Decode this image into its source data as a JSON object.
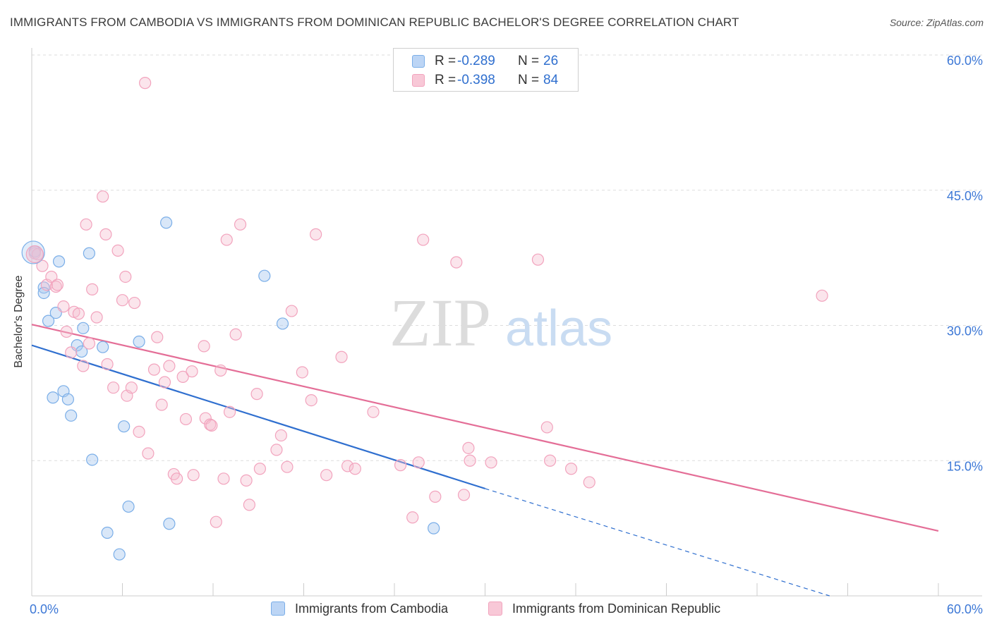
{
  "title": "IMMIGRANTS FROM CAMBODIA VS IMMIGRANTS FROM DOMINICAN REPUBLIC BACHELOR'S DEGREE CORRELATION CHART",
  "source": "Source: ZipAtlas.com",
  "watermark": {
    "zip": "ZIP",
    "atlas": "atlas"
  },
  "legend": {
    "rows": [
      {
        "r_label": "R =",
        "r_value": "-0.289",
        "n_label": "N =",
        "n_value": "26"
      },
      {
        "r_label": "R =",
        "r_value": "-0.398",
        "n_label": "N =",
        "n_value": "84"
      }
    ]
  },
  "bottom_legend": [
    "Immigrants from Cambodia",
    "Immigrants from Dominican Republic"
  ],
  "chart_data": {
    "type": "scatter",
    "xlabel": "",
    "ylabel": "Bachelor's Degree",
    "xlim": [
      0,
      60
    ],
    "ylim": [
      0,
      60
    ],
    "x_tick_labels": [
      "0.0%",
      "60.0%"
    ],
    "y_tick_labels": [
      "15.0%",
      "30.0%",
      "45.0%",
      "60.0%"
    ],
    "y_ticks": [
      15,
      30,
      45,
      60
    ],
    "grid": true,
    "colors": {
      "cambodia": "#7aaee8",
      "dominican": "#f2a3bd",
      "cambodia_line": "#2f6fcf",
      "dominican_line": "#e46e97",
      "tick": "#3d78d6"
    },
    "series": [
      {
        "name": "Immigrants from Cambodia",
        "points": [
          [
            0.2,
            38.2
          ],
          [
            0.8,
            34.2
          ],
          [
            0.8,
            33.6
          ],
          [
            1.1,
            30.5
          ],
          [
            1.6,
            31.4
          ],
          [
            1.8,
            37.1
          ],
          [
            2.1,
            22.7
          ],
          [
            1.4,
            22.0
          ],
          [
            2.4,
            21.8
          ],
          [
            2.6,
            20.0
          ],
          [
            3.4,
            29.7
          ],
          [
            3.0,
            27.8
          ],
          [
            3.3,
            27.1
          ],
          [
            3.8,
            38.0
          ],
          [
            4.7,
            27.6
          ],
          [
            4.0,
            15.1
          ],
          [
            5.0,
            7.0
          ],
          [
            5.8,
            4.6
          ],
          [
            6.1,
            18.8
          ],
          [
            6.4,
            9.9
          ],
          [
            7.1,
            28.2
          ],
          [
            8.9,
            41.4
          ],
          [
            9.1,
            8.0
          ],
          [
            15.4,
            35.5
          ],
          [
            16.6,
            30.2
          ],
          [
            26.6,
            7.5
          ]
        ],
        "trend": {
          "x": [
            0,
            30
          ],
          "y": [
            27.8,
            11.9
          ]
        },
        "trend_dashed": {
          "x": [
            30,
            52.8
          ],
          "y": [
            11.9,
            0
          ]
        }
      },
      {
        "name": "Immigrants from Dominican Republic",
        "points": [
          [
            0.2,
            38.0
          ],
          [
            0.7,
            36.6
          ],
          [
            1.0,
            34.5
          ],
          [
            1.3,
            35.4
          ],
          [
            1.6,
            34.3
          ],
          [
            1.7,
            34.5
          ],
          [
            2.1,
            32.1
          ],
          [
            2.3,
            29.3
          ],
          [
            2.6,
            27.0
          ],
          [
            2.8,
            31.5
          ],
          [
            3.1,
            31.3
          ],
          [
            3.4,
            25.5
          ],
          [
            3.6,
            41.2
          ],
          [
            3.8,
            28.0
          ],
          [
            4.0,
            34.0
          ],
          [
            4.3,
            30.9
          ],
          [
            4.7,
            44.3
          ],
          [
            4.9,
            40.1
          ],
          [
            5.0,
            25.7
          ],
          [
            5.4,
            23.1
          ],
          [
            5.7,
            38.3
          ],
          [
            6.0,
            32.8
          ],
          [
            6.2,
            35.4
          ],
          [
            6.3,
            22.2
          ],
          [
            6.6,
            23.1
          ],
          [
            6.8,
            32.5
          ],
          [
            7.1,
            18.2
          ],
          [
            7.5,
            56.9
          ],
          [
            7.7,
            15.8
          ],
          [
            8.1,
            25.1
          ],
          [
            8.3,
            28.7
          ],
          [
            8.6,
            21.2
          ],
          [
            8.8,
            23.7
          ],
          [
            9.1,
            25.5
          ],
          [
            9.4,
            13.5
          ],
          [
            9.6,
            13.0
          ],
          [
            10.0,
            24.3
          ],
          [
            10.2,
            19.6
          ],
          [
            10.6,
            24.9
          ],
          [
            10.7,
            13.4
          ],
          [
            11.4,
            27.7
          ],
          [
            11.5,
            19.7
          ],
          [
            11.8,
            19.0
          ],
          [
            11.9,
            18.9
          ],
          [
            12.2,
            8.2
          ],
          [
            12.5,
            25.0
          ],
          [
            12.7,
            13.0
          ],
          [
            12.9,
            39.5
          ],
          [
            13.1,
            20.4
          ],
          [
            13.5,
            29.0
          ],
          [
            13.8,
            41.2
          ],
          [
            14.2,
            12.8
          ],
          [
            14.4,
            10.1
          ],
          [
            14.9,
            22.4
          ],
          [
            15.1,
            14.1
          ],
          [
            16.2,
            16.2
          ],
          [
            16.5,
            17.8
          ],
          [
            16.9,
            14.3
          ],
          [
            17.2,
            31.6
          ],
          [
            17.9,
            24.8
          ],
          [
            18.5,
            21.7
          ],
          [
            18.8,
            40.1
          ],
          [
            19.5,
            13.4
          ],
          [
            20.9,
            14.4
          ],
          [
            20.5,
            26.5
          ],
          [
            21.4,
            14.1
          ],
          [
            22.6,
            20.4
          ],
          [
            24.4,
            14.5
          ],
          [
            25.2,
            8.7
          ],
          [
            25.6,
            14.8
          ],
          [
            25.9,
            39.5
          ],
          [
            26.7,
            11.0
          ],
          [
            28.1,
            37.0
          ],
          [
            28.6,
            11.2
          ],
          [
            28.9,
            16.4
          ],
          [
            29.0,
            15.0
          ],
          [
            30.4,
            14.8
          ],
          [
            33.5,
            37.3
          ],
          [
            34.1,
            18.7
          ],
          [
            34.3,
            15.0
          ],
          [
            35.7,
            14.1
          ],
          [
            36.9,
            12.6
          ],
          [
            52.3,
            33.3
          ],
          [
            0.4,
            37.9
          ]
        ],
        "trend": {
          "x": [
            0,
            60
          ],
          "y": [
            30.1,
            7.2
          ]
        }
      }
    ]
  }
}
